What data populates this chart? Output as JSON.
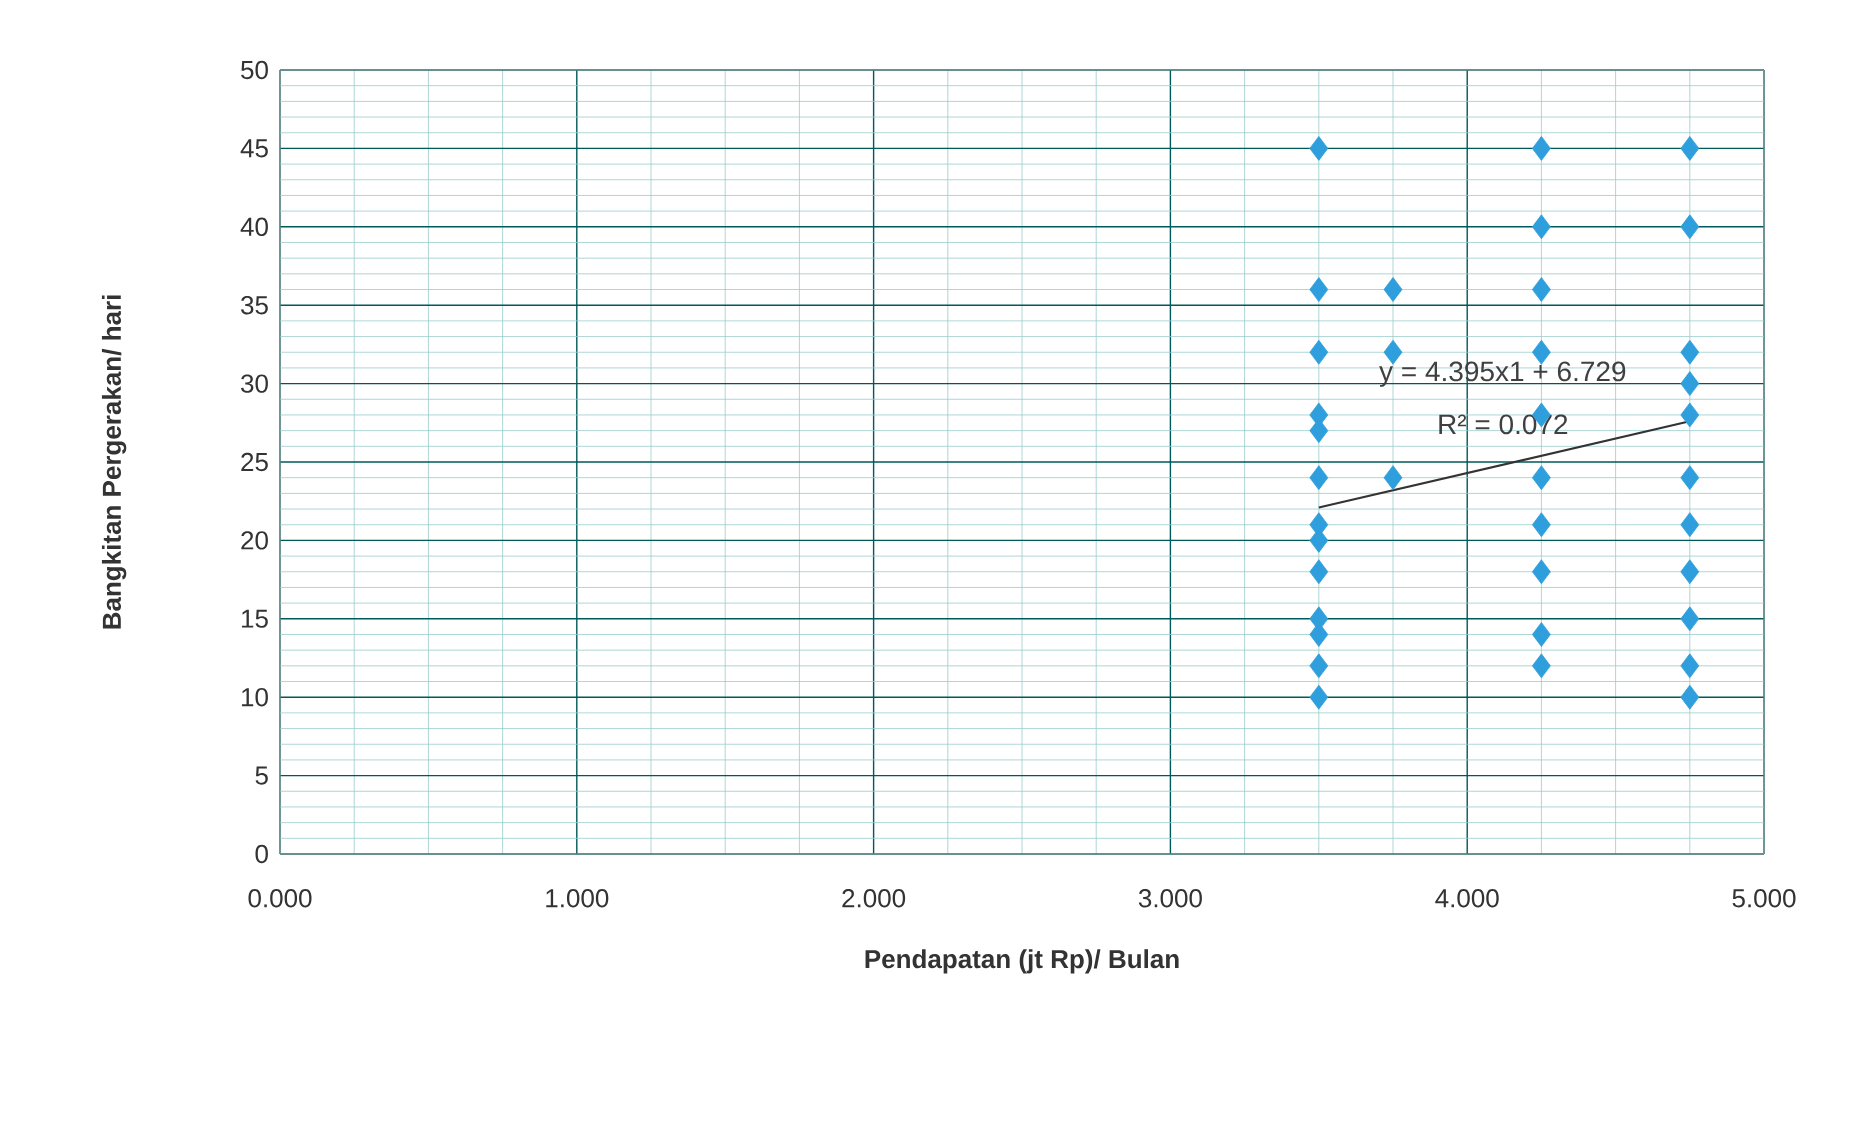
{
  "chart_data": {
    "type": "scatter",
    "xlabel": "Pendapatan (jt Rp)/ Bulan",
    "ylabel": "Bangkitan Pergerakan/ hari",
    "series": [
      {
        "color": "#2e9fdc",
        "marker": "diamond",
        "x": [
          3.5,
          3.5,
          3.5,
          3.5,
          3.5,
          3.5,
          3.5,
          3.5,
          3.5,
          3.5,
          3.5,
          3.5,
          3.5,
          3.75,
          3.75,
          3.75,
          4.25,
          4.25,
          4.25,
          4.25,
          4.25,
          4.25,
          4.25,
          4.25,
          4.25,
          4.25,
          4.75,
          4.75,
          4.75,
          4.75,
          4.75,
          4.75,
          4.75,
          4.75,
          4.75,
          4.75,
          4.75
        ],
        "values": [
          45,
          36,
          32,
          28,
          27,
          24,
          21,
          20,
          18,
          15,
          14,
          12,
          10,
          36,
          32,
          24,
          45,
          40,
          36,
          32,
          28,
          24,
          21,
          18,
          14,
          12,
          45,
          40,
          32,
          30,
          28,
          24,
          21,
          18,
          15,
          12,
          10
        ]
      },
      {
        "type": "line",
        "color": "#333333",
        "line_style": "solid",
        "x": [
          3.5,
          4.75
        ],
        "values": [
          22.1,
          27.6
        ]
      }
    ],
    "xlim": [
      0,
      5
    ],
    "xticks": [
      {
        "value": 0,
        "label": "0.000"
      },
      {
        "value": 1,
        "label": "1.000"
      },
      {
        "value": 2,
        "label": "2.000"
      },
      {
        "value": 3,
        "label": "3.000"
      },
      {
        "value": 4,
        "label": "4.000"
      },
      {
        "value": 5,
        "label": "5.000"
      },
      {
        "value": 0.25,
        "label": null
      },
      {
        "value": 0.5,
        "label": null
      },
      {
        "value": 0.75,
        "label": null
      },
      {
        "value": 1.25,
        "label": null
      },
      {
        "value": 1.5,
        "label": null
      },
      {
        "value": 1.75,
        "label": null
      },
      {
        "value": 2.25,
        "label": null
      },
      {
        "value": 2.5,
        "label": null
      },
      {
        "value": 2.75,
        "label": null
      },
      {
        "value": 3.25,
        "label": null
      },
      {
        "value": 3.5,
        "label": null
      },
      {
        "value": 3.75,
        "label": null
      },
      {
        "value": 4.25,
        "label": null
      },
      {
        "value": 4.5,
        "label": null
      },
      {
        "value": 4.75,
        "label": null
      }
    ],
    "ylim": [
      0,
      50
    ],
    "yticks": [
      0,
      5,
      10,
      15,
      20,
      25,
      30,
      35,
      40,
      45,
      50,
      {
        "value": 1,
        "label": null
      },
      {
        "value": 2,
        "label": null
      },
      {
        "value": 3,
        "label": null
      },
      {
        "value": 4,
        "label": null
      },
      {
        "value": 6,
        "label": null
      },
      {
        "value": 7,
        "label": null
      },
      {
        "value": 8,
        "label": null
      },
      {
        "value": 9,
        "label": null
      },
      {
        "value": 11,
        "label": null
      },
      {
        "value": 12,
        "label": null
      },
      {
        "value": 13,
        "label": null
      },
      {
        "value": 14,
        "label": null
      },
      {
        "value": 16,
        "label": null
      },
      {
        "value": 17,
        "label": null
      },
      {
        "value": 18,
        "label": null
      },
      {
        "value": 19,
        "label": null
      },
      {
        "value": 21,
        "label": null
      },
      {
        "value": 22,
        "label": null
      },
      {
        "value": 23,
        "label": null
      },
      {
        "value": 24,
        "label": null
      },
      {
        "value": 26,
        "label": null
      },
      {
        "value": 27,
        "label": null
      },
      {
        "value": 28,
        "label": null
      },
      {
        "value": 29,
        "label": null
      },
      {
        "value": 31,
        "label": null
      },
      {
        "value": 32,
        "label": null
      },
      {
        "value": 33,
        "label": null
      },
      {
        "value": 34,
        "label": null
      },
      {
        "value": 36,
        "label": null
      },
      {
        "value": 37,
        "label": null
      },
      {
        "value": 38,
        "label": null
      },
      {
        "value": 39,
        "label": null
      },
      {
        "value": 41,
        "label": null
      },
      {
        "value": 42,
        "label": null
      },
      {
        "value": 43,
        "label": null
      },
      {
        "value": 44,
        "label": null
      },
      {
        "value": 46,
        "label": null
      },
      {
        "value": 47,
        "label": null
      },
      {
        "value": 48,
        "label": null
      },
      {
        "value": 49,
        "label": null
      }
    ],
    "grid": true,
    "annotations": [
      "y = 4.395x1 + 6.729",
      "R² = 0.072"
    ]
  }
}
